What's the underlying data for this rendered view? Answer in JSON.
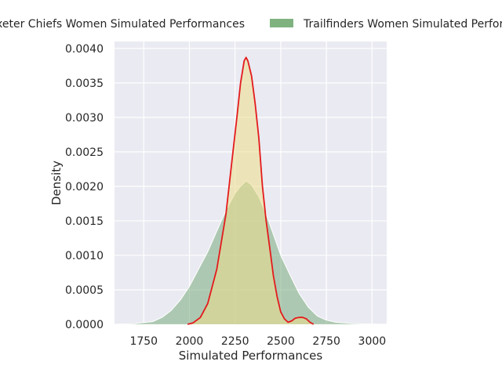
{
  "chart_data": {
    "type": "area",
    "title": "",
    "xlabel": "Simulated Performances",
    "ylabel": "Density",
    "xlim": [
      1590,
      3080
    ],
    "ylim": [
      0,
      0.0041
    ],
    "x_ticks": [
      1750,
      2000,
      2250,
      2500,
      2750,
      3000
    ],
    "x_tick_labels": [
      "1750",
      "2000",
      "2250",
      "2500",
      "2750",
      "3000"
    ],
    "y_ticks": [
      0,
      0.0005,
      0.001,
      0.0015,
      0.002,
      0.0025,
      0.003,
      0.0035,
      0.004
    ],
    "y_tick_labels": [
      "0.0000",
      "0.0005",
      "0.0010",
      "0.0015",
      "0.0020",
      "0.0025",
      "0.0030",
      "0.0035",
      "0.0040"
    ],
    "grid": true,
    "legend_position": "top",
    "series": [
      {
        "name": "Trailfinders Women Simulated Performances",
        "legend_label": "Trailfinders Women Simulated Perform",
        "fill": "#6fa572",
        "fill_opacity": 0.5,
        "line": "#ffffff",
        "x": [
          1600,
          1700,
          1800,
          1850,
          1900,
          1950,
          2000,
          2050,
          2100,
          2150,
          2200,
          2250,
          2280,
          2310,
          2340,
          2380,
          2420,
          2460,
          2500,
          2550,
          2600,
          2650,
          2700,
          2750,
          2800,
          2900,
          3000,
          3070
        ],
        "y": [
          0,
          1e-05,
          4e-05,
          0.0001,
          0.0002,
          0.00035,
          0.00055,
          0.0008,
          0.00105,
          0.00135,
          0.00165,
          0.0019,
          0.002,
          0.00208,
          0.00202,
          0.00185,
          0.0016,
          0.0013,
          0.001,
          0.00072,
          0.00045,
          0.00025,
          0.00012,
          6e-05,
          3e-05,
          1e-05,
          2e-06,
          0
        ]
      },
      {
        "name": "Exeter Chiefs Women Simulated Performances",
        "legend_label": "Exeter Chiefs Women Simulated Performances",
        "fill": "#eddc8a",
        "fill_opacity": 0.55,
        "line": "#e41a1c",
        "x": [
          1990,
          2020,
          2060,
          2100,
          2150,
          2200,
          2230,
          2260,
          2280,
          2300,
          2310,
          2320,
          2340,
          2360,
          2380,
          2400,
          2420,
          2440,
          2460,
          2480,
          2500,
          2520,
          2540,
          2560,
          2580,
          2600,
          2620,
          2640,
          2660,
          2680
        ],
        "y": [
          0,
          2e-05,
          0.0001,
          0.0003,
          0.0008,
          0.0016,
          0.0023,
          0.003,
          0.0035,
          0.00382,
          0.00387,
          0.00382,
          0.0036,
          0.0032,
          0.0027,
          0.002,
          0.0015,
          0.0011,
          0.0007,
          0.0004,
          0.00018,
          8e-05,
          3e-05,
          5e-05,
          9e-05,
          0.0001,
          0.0001,
          8e-05,
          3e-05,
          0
        ]
      }
    ]
  }
}
